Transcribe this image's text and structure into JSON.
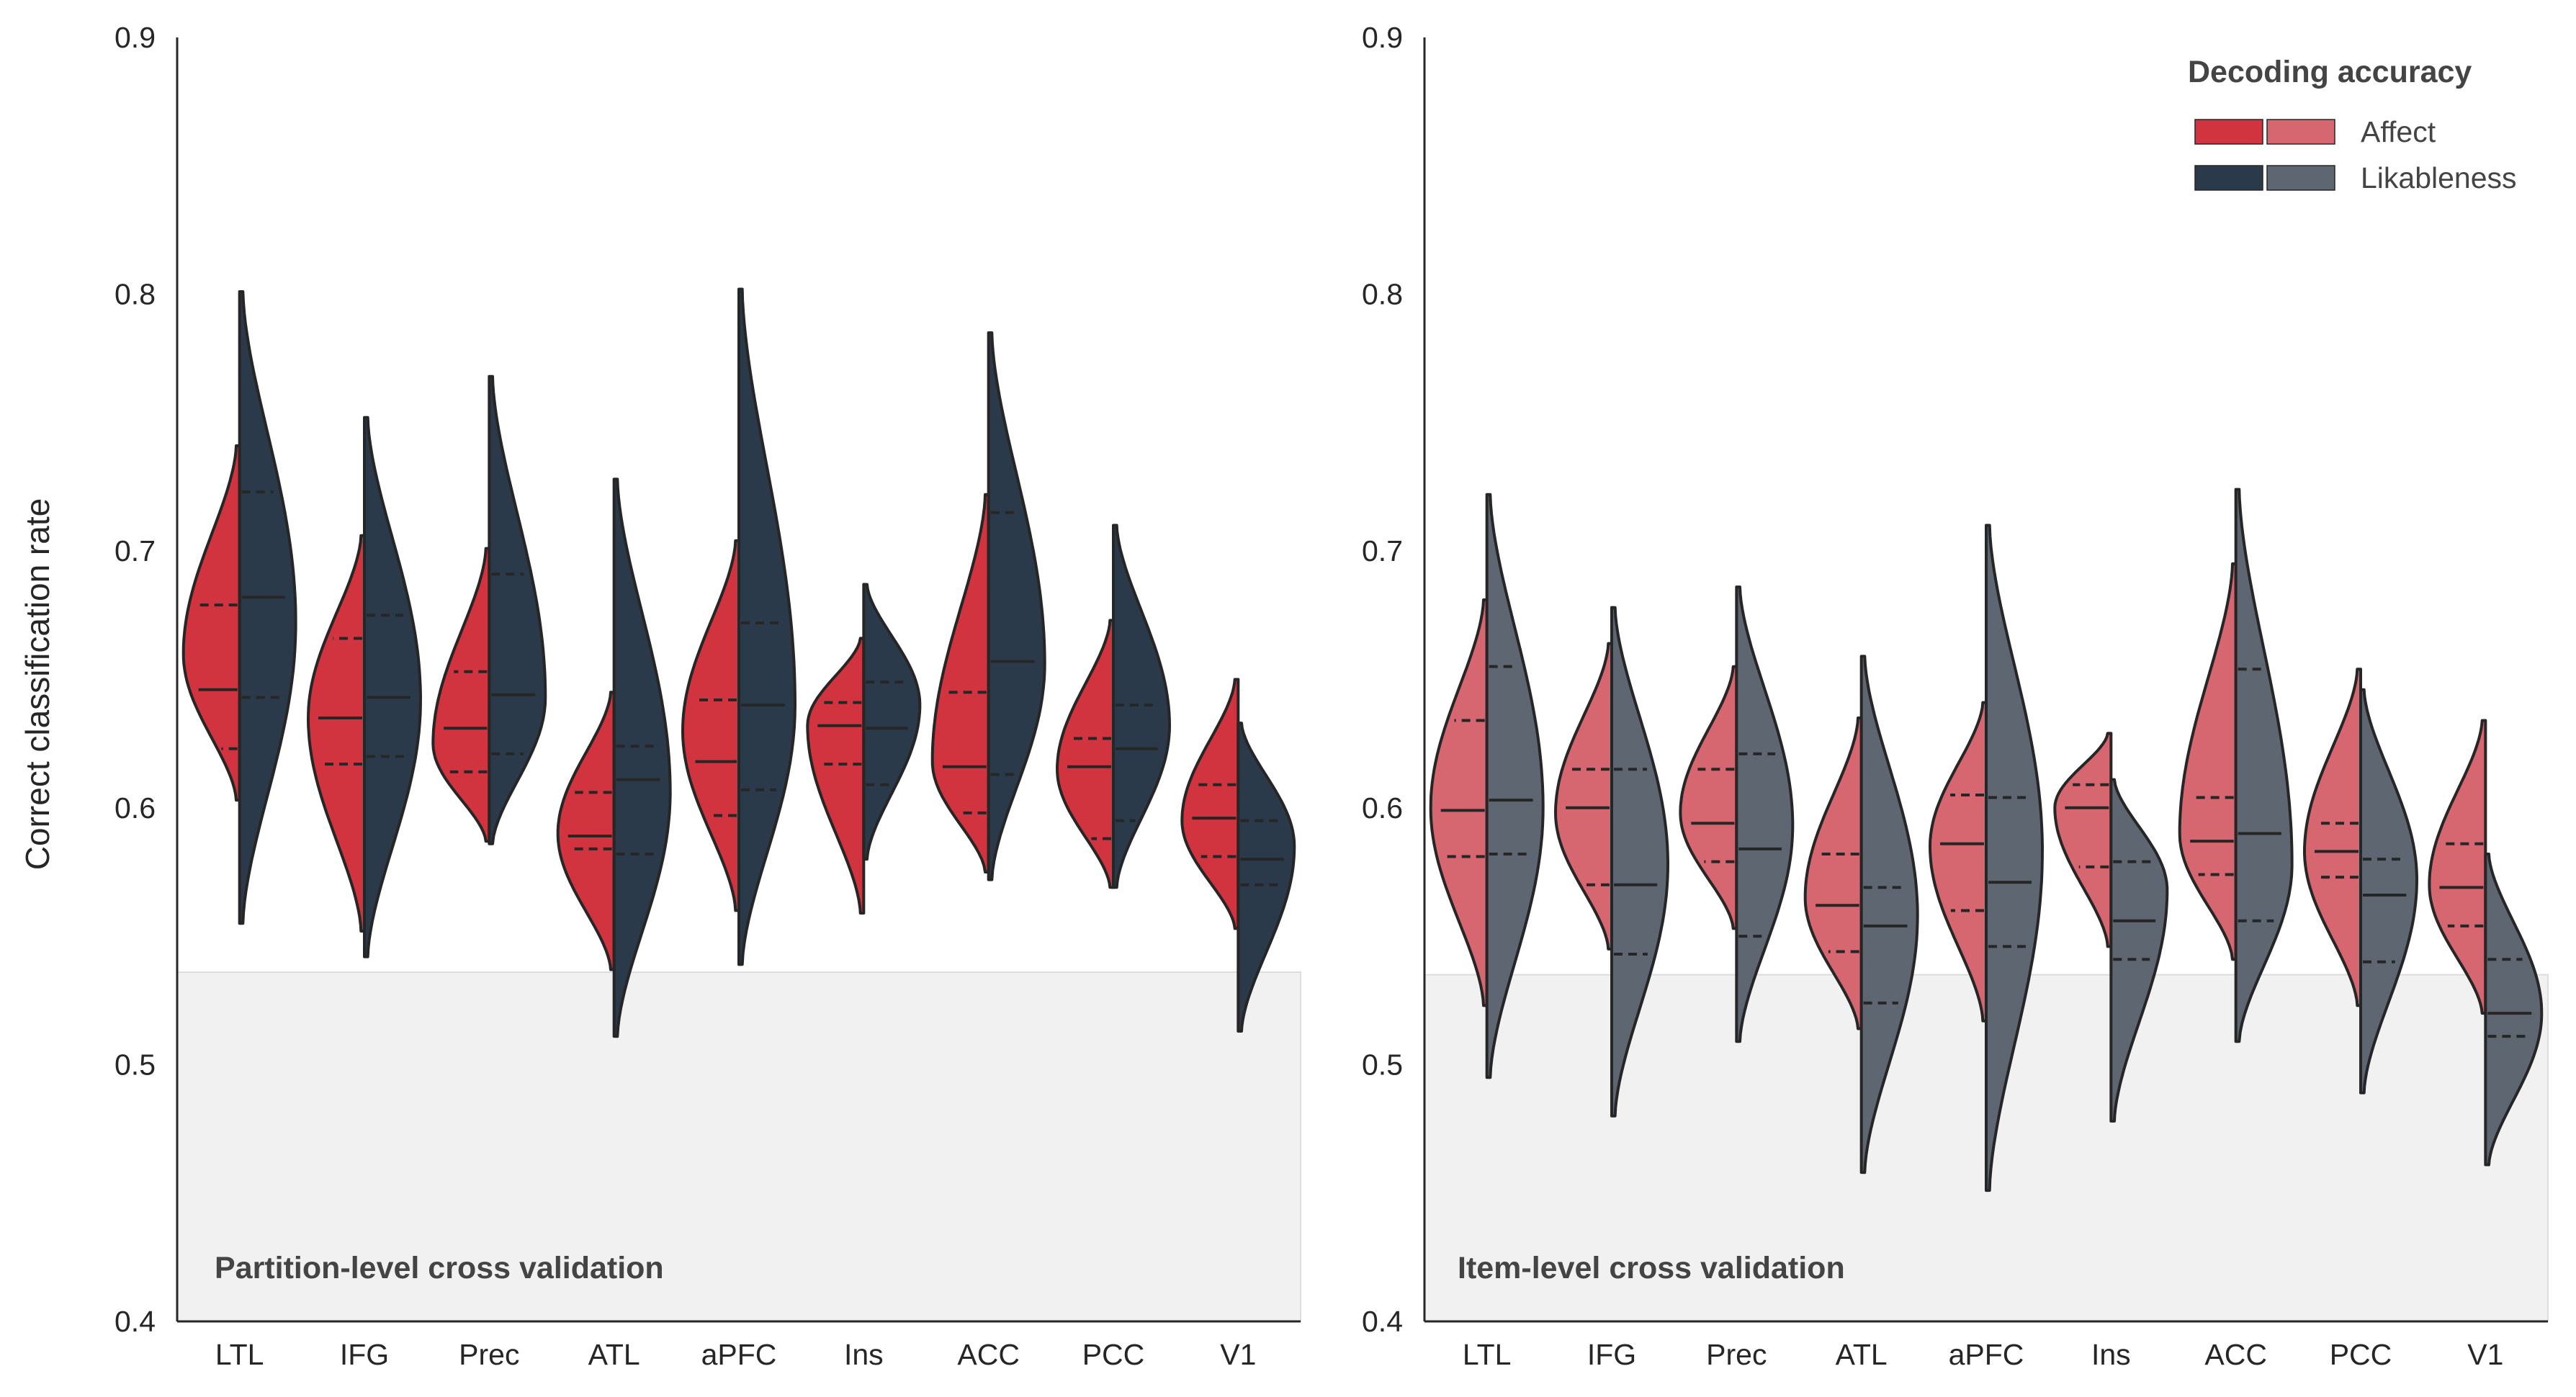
{
  "shared": {
    "ylabel": "Correct classification rate",
    "regions": [
      "LTL",
      "IFG",
      "Prec",
      "ATL",
      "aPFC",
      "Ins",
      "ACC",
      "PCC",
      "V1"
    ],
    "yticks": [
      "0.4",
      "0.5",
      "0.6",
      "0.7",
      "0.8",
      "0.9"
    ],
    "colors": {
      "affect_partition": "#D2343F",
      "likable_partition": "#2A3A4A",
      "affect_item": "#D66670",
      "likable_item": "#5E6672",
      "chance_band": "#F1F1F1",
      "outline": "#262626"
    }
  },
  "legend": {
    "title": "Decoding accuracy",
    "affect": "Affect",
    "likableness": "Likableness"
  },
  "chart_data": [
    {
      "type": "violin",
      "panel_label": "Partition-level cross validation",
      "ylim": [
        0.4,
        0.9
      ],
      "chance_upper": 0.536,
      "categories": [
        "LTL",
        "IFG",
        "Prec",
        "ATL",
        "aPFC",
        "Ins",
        "ACC",
        "PCC",
        "V1"
      ],
      "series": [
        {
          "name": "Affect",
          "side": "left",
          "violins": [
            {
              "min": 0.603,
              "max": 0.741,
              "peak": 0.66,
              "q1": 0.623,
              "median": 0.646,
              "q3": 0.679
            },
            {
              "min": 0.552,
              "max": 0.706,
              "peak": 0.635,
              "q1": 0.617,
              "median": 0.635,
              "q3": 0.666
            },
            {
              "min": 0.587,
              "max": 0.701,
              "peak": 0.625,
              "q1": 0.614,
              "median": 0.631,
              "q3": 0.653
            },
            {
              "min": 0.537,
              "max": 0.645,
              "peak": 0.59,
              "q1": 0.584,
              "median": 0.589,
              "q3": 0.606
            },
            {
              "min": 0.56,
              "max": 0.704,
              "peak": 0.63,
              "q1": 0.597,
              "median": 0.618,
              "q3": 0.642
            },
            {
              "min": 0.559,
              "max": 0.666,
              "peak": 0.632,
              "q1": 0.617,
              "median": 0.632,
              "q3": 0.641
            },
            {
              "min": 0.575,
              "max": 0.722,
              "peak": 0.618,
              "q1": 0.598,
              "median": 0.616,
              "q3": 0.645
            },
            {
              "min": 0.569,
              "max": 0.673,
              "peak": 0.615,
              "q1": 0.588,
              "median": 0.616,
              "q3": 0.627
            },
            {
              "min": 0.553,
              "max": 0.65,
              "peak": 0.595,
              "q1": 0.581,
              "median": 0.596,
              "q3": 0.609
            }
          ]
        },
        {
          "name": "Likableness",
          "side": "right",
          "violins": [
            {
              "min": 0.555,
              "max": 0.801,
              "peak": 0.672,
              "q1": 0.643,
              "median": 0.682,
              "q3": 0.723
            },
            {
              "min": 0.542,
              "max": 0.752,
              "peak": 0.642,
              "q1": 0.62,
              "median": 0.643,
              "q3": 0.675
            },
            {
              "min": 0.586,
              "max": 0.768,
              "peak": 0.643,
              "q1": 0.621,
              "median": 0.644,
              "q3": 0.691
            },
            {
              "min": 0.511,
              "max": 0.728,
              "peak": 0.606,
              "q1": 0.582,
              "median": 0.611,
              "q3": 0.624
            },
            {
              "min": 0.539,
              "max": 0.802,
              "peak": 0.64,
              "q1": 0.607,
              "median": 0.64,
              "q3": 0.672
            },
            {
              "min": 0.58,
              "max": 0.687,
              "peak": 0.64,
              "q1": 0.609,
              "median": 0.631,
              "q3": 0.649
            },
            {
              "min": 0.572,
              "max": 0.785,
              "peak": 0.656,
              "q1": 0.613,
              "median": 0.657,
              "q3": 0.715
            },
            {
              "min": 0.569,
              "max": 0.71,
              "peak": 0.632,
              "q1": 0.595,
              "median": 0.623,
              "q3": 0.64
            },
            {
              "min": 0.513,
              "max": 0.633,
              "peak": 0.585,
              "q1": 0.57,
              "median": 0.58,
              "q3": 0.595
            }
          ]
        }
      ]
    },
    {
      "type": "violin",
      "panel_label": "Item-level cross validation",
      "ylim": [
        0.4,
        0.9
      ],
      "chance_upper": 0.535,
      "categories": [
        "LTL",
        "IFG",
        "Prec",
        "ATL",
        "aPFC",
        "Ins",
        "ACC",
        "PCC",
        "V1"
      ],
      "series": [
        {
          "name": "Affect",
          "side": "left",
          "violins": [
            {
              "min": 0.523,
              "max": 0.681,
              "peak": 0.6,
              "q1": 0.581,
              "median": 0.599,
              "q3": 0.634
            },
            {
              "min": 0.545,
              "max": 0.664,
              "peak": 0.598,
              "q1": 0.57,
              "median": 0.6,
              "q3": 0.615
            },
            {
              "min": 0.553,
              "max": 0.655,
              "peak": 0.598,
              "q1": 0.579,
              "median": 0.594,
              "q3": 0.615
            },
            {
              "min": 0.514,
              "max": 0.635,
              "peak": 0.565,
              "q1": 0.544,
              "median": 0.562,
              "q3": 0.582
            },
            {
              "min": 0.517,
              "max": 0.641,
              "peak": 0.585,
              "q1": 0.56,
              "median": 0.586,
              "q3": 0.605
            },
            {
              "min": 0.546,
              "max": 0.629,
              "peak": 0.6,
              "q1": 0.577,
              "median": 0.6,
              "q3": 0.609
            },
            {
              "min": 0.541,
              "max": 0.695,
              "peak": 0.59,
              "q1": 0.574,
              "median": 0.587,
              "q3": 0.604
            },
            {
              "min": 0.523,
              "max": 0.654,
              "peak": 0.583,
              "q1": 0.573,
              "median": 0.583,
              "q3": 0.594
            },
            {
              "min": 0.52,
              "max": 0.634,
              "peak": 0.57,
              "q1": 0.554,
              "median": 0.569,
              "q3": 0.586
            }
          ]
        },
        {
          "name": "Likableness",
          "side": "right",
          "violins": [
            {
              "min": 0.495,
              "max": 0.722,
              "peak": 0.6,
              "q1": 0.582,
              "median": 0.603,
              "q3": 0.655
            },
            {
              "min": 0.48,
              "max": 0.678,
              "peak": 0.578,
              "q1": 0.543,
              "median": 0.57,
              "q3": 0.615
            },
            {
              "min": 0.509,
              "max": 0.686,
              "peak": 0.593,
              "q1": 0.55,
              "median": 0.584,
              "q3": 0.621
            },
            {
              "min": 0.458,
              "max": 0.659,
              "peak": 0.558,
              "q1": 0.524,
              "median": 0.554,
              "q3": 0.569
            },
            {
              "min": 0.451,
              "max": 0.71,
              "peak": 0.583,
              "q1": 0.546,
              "median": 0.571,
              "q3": 0.604
            },
            {
              "min": 0.478,
              "max": 0.611,
              "peak": 0.568,
              "q1": 0.541,
              "median": 0.556,
              "q3": 0.579
            },
            {
              "min": 0.509,
              "max": 0.724,
              "peak": 0.578,
              "q1": 0.556,
              "median": 0.59,
              "q3": 0.654
            },
            {
              "min": 0.489,
              "max": 0.646,
              "peak": 0.572,
              "q1": 0.54,
              "median": 0.566,
              "q3": 0.58
            },
            {
              "min": 0.461,
              "max": 0.582,
              "peak": 0.52,
              "q1": 0.511,
              "median": 0.52,
              "q3": 0.541
            }
          ]
        }
      ]
    }
  ]
}
